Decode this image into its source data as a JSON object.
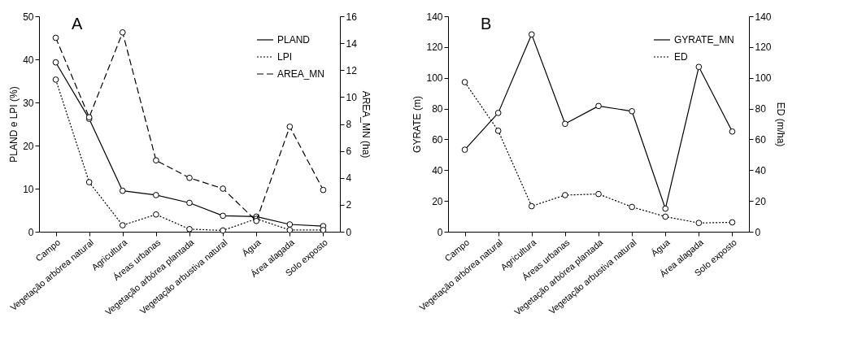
{
  "chart_data": [
    {
      "type": "line",
      "annotations": [
        "A"
      ],
      "ylabel": "PLAND e LPI (%)",
      "y2label": "AREA_MN (ha)",
      "categories": [
        "Campo",
        "Vegetação arbórea natural",
        "Agricultura",
        "Áreas urbanas",
        "Vegetação arbórea plantada",
        "Vegetação arbustiva natural",
        "Água",
        "Área alagada",
        "Solo exposto"
      ],
      "ylim": [
        0,
        50
      ],
      "yticks": [
        0,
        10,
        20,
        30,
        40,
        50
      ],
      "y2lim": [
        0,
        16
      ],
      "y2ticks": [
        0,
        2,
        4,
        6,
        8,
        10,
        12,
        14,
        16
      ],
      "legend": "top right",
      "marker": "circle",
      "series": [
        {
          "name": "PLAND",
          "color": "#000000",
          "line_style": "solid",
          "values": [
            39.3,
            26.2,
            9.5,
            8.5,
            6.7,
            3.7,
            3.5,
            1.7,
            1.3
          ]
        },
        {
          "name": "LPI",
          "color": "#000000",
          "line_style": "dotted",
          "values": [
            35.3,
            11.5,
            1.5,
            4.0,
            0.6,
            0.3,
            3.0,
            0.4,
            0.4
          ]
        },
        {
          "name": "AREA_MN",
          "color": "#000000",
          "line_style": "dashed",
          "axis": "y2",
          "values": [
            14.4,
            8.5,
            14.8,
            5.3,
            4.0,
            3.2,
            0.8,
            7.8,
            3.1
          ]
        }
      ]
    },
    {
      "type": "line",
      "annotations": [
        "B"
      ],
      "ylabel": "GYRATE  (m)",
      "y2label": "ED (m/ha)",
      "categories": [
        "Campo",
        "Vegetação arbórea natural",
        "Agricultura",
        "Áreas urbanas",
        "Vegetação arbórea plantada",
        "Vegetação arbustiva natural",
        "Água",
        "Área alagada",
        "Solo exposto"
      ],
      "ylim": [
        0,
        140
      ],
      "yticks": [
        0,
        20,
        40,
        60,
        80,
        100,
        120,
        140
      ],
      "y2lim": [
        0,
        140
      ],
      "y2ticks": [
        0,
        20,
        40,
        60,
        80,
        100,
        120,
        140
      ],
      "legend": "top right",
      "marker": "circle",
      "series": [
        {
          "name": "GYRATE_MN",
          "color": "#000000",
          "line_style": "solid",
          "values": [
            53.3,
            77.2,
            128.2,
            70.1,
            81.7,
            78.3,
            15.0,
            107.1,
            65.1
          ]
        },
        {
          "name": "ED",
          "color": "#000000",
          "line_style": "dotted",
          "axis": "y2",
          "values": [
            97.2,
            65.6,
            16.6,
            23.8,
            24.5,
            16.1,
            9.8,
            5.7,
            6.1
          ]
        }
      ]
    }
  ]
}
